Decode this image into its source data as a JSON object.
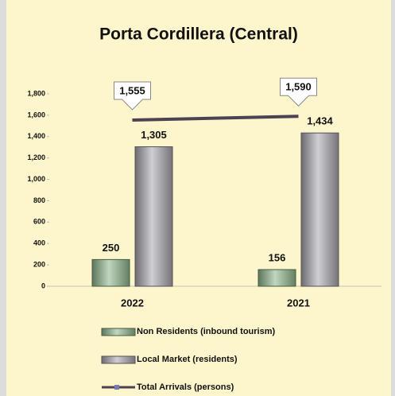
{
  "chart_data": {
    "type": "bar",
    "title": "Porta Cordillera (Central)",
    "categories": [
      "2022",
      "2021"
    ],
    "series": [
      {
        "name": "Non Residents (inbound tourism)",
        "type": "bar",
        "color": "#8db58a",
        "values": [
          250,
          156
        ]
      },
      {
        "name": "Local Market (residents)",
        "type": "bar",
        "color": "#a8a5ad",
        "values": [
          1305,
          1434
        ],
        "value_labels": [
          "1,305",
          "1,434"
        ]
      },
      {
        "name": "Total Arrivals (persons)",
        "type": "line",
        "color": "#4b4352",
        "values": [
          1555,
          1590
        ],
        "value_labels": [
          "1,555",
          "1,590"
        ]
      }
    ],
    "ylim": [
      0,
      1800
    ],
    "yticks": [
      0,
      200,
      400,
      600,
      800,
      {
        "value": 1000,
        "label": "1,000"
      },
      {
        "value": 1200,
        "label": "1,200"
      },
      {
        "value": 1400,
        "label": "1,400"
      },
      {
        "value": 1600,
        "label": "1,600"
      },
      {
        "value": 1800,
        "label": "1,800"
      }
    ],
    "grid": false,
    "legend": "bottom"
  }
}
